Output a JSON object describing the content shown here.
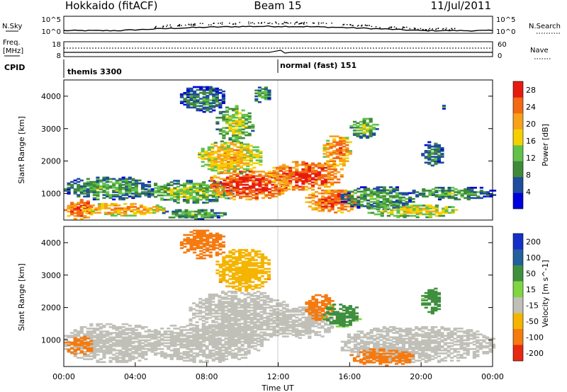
{
  "header": {
    "station": "Hokkaido (fitACF)",
    "beam": "Beam 15",
    "date": "11/Jul/2011"
  },
  "noise_panel": {
    "left_label_top": "N.Sky",
    "left_tick_top": "10^5",
    "left_tick_bottom": "10^0",
    "right_tick_top": "10^5",
    "right_tick_bottom": "10^0",
    "right_label": "N.Search"
  },
  "freq_panel": {
    "left_label_line1": "Freq.",
    "left_label_line2": "[MHz]",
    "left_tick_top": "18",
    "left_tick_bottom": "8",
    "right_tick_top": "60",
    "right_tick_bottom": "0",
    "right_label": "Nave"
  },
  "cpid_panel": {
    "label": "CPID",
    "segments": [
      {
        "text": "themis 3300",
        "start_hour": 0
      },
      {
        "text": "normal (fast) 151",
        "start_hour": 12
      }
    ]
  },
  "chart_data": [
    {
      "type": "heatmap",
      "name": "power-panel",
      "ylabel": "Slant Range [km]",
      "ylim": [
        180,
        4500
      ],
      "yticks": [
        "1000",
        "2000",
        "3000",
        "4000"
      ],
      "ytick_values": [
        1000,
        2000,
        3000,
        4000
      ],
      "xlim": [
        0,
        24
      ],
      "colorbar": {
        "label": "Power [dB]",
        "ticks": [
          "4",
          "8",
          "12",
          "16",
          "20",
          "24",
          "28"
        ],
        "tick_values": [
          4,
          8,
          12,
          16,
          20,
          24,
          28
        ],
        "range": [
          0,
          30
        ],
        "colors": [
          "#0000dd",
          "#1e4d9e",
          "#3f8a3a",
          "#61c24a",
          "#f5d000",
          "#f7a21a",
          "#f26a12",
          "#e81a10"
        ]
      },
      "regions": [
        {
          "t": [
            0.0,
            1.6
          ],
          "r": [
            200,
            800
          ],
          "v": 27
        },
        {
          "t": [
            1.0,
            5.5
          ],
          "r": [
            300,
            700
          ],
          "v": 22
        },
        {
          "t": [
            0.0,
            5.0
          ],
          "r": [
            800,
            1500
          ],
          "v": 12
        },
        {
          "t": [
            4.5,
            9.5
          ],
          "r": [
            700,
            1400
          ],
          "v": 14
        },
        {
          "t": [
            5.5,
            9.0
          ],
          "r": [
            200,
            500
          ],
          "v": 13
        },
        {
          "t": [
            7.5,
            11.0
          ],
          "r": [
            1600,
            2600
          ],
          "v": 20
        },
        {
          "t": [
            8.0,
            12.5
          ],
          "r": [
            800,
            1700
          ],
          "v": 28
        },
        {
          "t": [
            11.5,
            15.5
          ],
          "r": [
            1100,
            2000
          ],
          "v": 27
        },
        {
          "t": [
            13.5,
            16.5
          ],
          "r": [
            400,
            1100
          ],
          "v": 26
        },
        {
          "t": [
            14.5,
            16.0
          ],
          "r": [
            1800,
            2800
          ],
          "v": 24
        },
        {
          "t": [
            15.5,
            19.5
          ],
          "r": [
            500,
            1200
          ],
          "v": 12
        },
        {
          "t": [
            17.0,
            22.0
          ],
          "r": [
            250,
            650
          ],
          "v": 18
        },
        {
          "t": [
            19.5,
            24.0
          ],
          "r": [
            800,
            1200
          ],
          "v": 12
        },
        {
          "t": [
            6.5,
            9.0
          ],
          "r": [
            3500,
            4300
          ],
          "v": 10
        },
        {
          "t": [
            8.5,
            10.5
          ],
          "r": [
            2600,
            3700
          ],
          "v": 16
        },
        {
          "t": [
            10.5,
            11.5
          ],
          "r": [
            3800,
            4300
          ],
          "v": 12
        },
        {
          "t": [
            16.0,
            17.5
          ],
          "r": [
            2700,
            3300
          ],
          "v": 14
        },
        {
          "t": [
            20.0,
            21.2
          ],
          "r": [
            1800,
            2600
          ],
          "v": 10
        },
        {
          "t": [
            21.0,
            21.3
          ],
          "r": [
            3600,
            3800
          ],
          "v": 10
        }
      ]
    },
    {
      "type": "heatmap",
      "name": "velocity-panel",
      "ylabel": "Slant Range [km]",
      "ylim": [
        180,
        4500
      ],
      "yticks": [
        "1000",
        "2000",
        "3000",
        "4000"
      ],
      "ytick_values": [
        1000,
        2000,
        3000,
        4000
      ],
      "xlim": [
        0,
        24
      ],
      "xticks": [
        "00:00",
        "04:00",
        "08:00",
        "12:00",
        "16:00",
        "20:00",
        "00:00"
      ],
      "xtick_hours": [
        0,
        4,
        8,
        12,
        16,
        20,
        24
      ],
      "xlabel": "Time UT",
      "colorbar": {
        "label": "Velocity [m s^-1]",
        "ticks": [
          "200",
          "100",
          "50",
          "15",
          "-15",
          "-50",
          "-100",
          "-200"
        ],
        "colors": [
          "#1530c8",
          "#22609e",
          "#3f8f3f",
          "#7fd640",
          "#c0c0b8",
          "#f5b400",
          "#f57a10",
          "#e82810"
        ]
      },
      "regions": [
        {
          "t": [
            0.0,
            5.5
          ],
          "r": [
            300,
            1500
          ],
          "v": 0
        },
        {
          "t": [
            4.5,
            11.0
          ],
          "r": [
            300,
            1500
          ],
          "v": 0
        },
        {
          "t": [
            7.0,
            12.5
          ],
          "r": [
            900,
            2500
          ],
          "v": 0
        },
        {
          "t": [
            11.5,
            15.0
          ],
          "r": [
            1000,
            2000
          ],
          "v": 0
        },
        {
          "t": [
            13.5,
            15.0
          ],
          "r": [
            1600,
            2400
          ],
          "v": -60
        },
        {
          "t": [
            14.5,
            16.5
          ],
          "r": [
            1400,
            2100
          ],
          "v": 40
        },
        {
          "t": [
            15.5,
            24.0
          ],
          "r": [
            300,
            1400
          ],
          "v": 0
        },
        {
          "t": [
            16.0,
            19.5
          ],
          "r": [
            200,
            700
          ],
          "v": -60
        },
        {
          "t": [
            8.5,
            11.5
          ],
          "r": [
            2500,
            3800
          ],
          "v": -40
        },
        {
          "t": [
            6.5,
            9.0
          ],
          "r": [
            3500,
            4400
          ],
          "v": -60
        },
        {
          "t": [
            20.0,
            21.0
          ],
          "r": [
            1800,
            2600
          ],
          "v": 40
        },
        {
          "t": [
            0.0,
            1.5
          ],
          "r": [
            500,
            1100
          ],
          "v": -60
        }
      ]
    }
  ]
}
